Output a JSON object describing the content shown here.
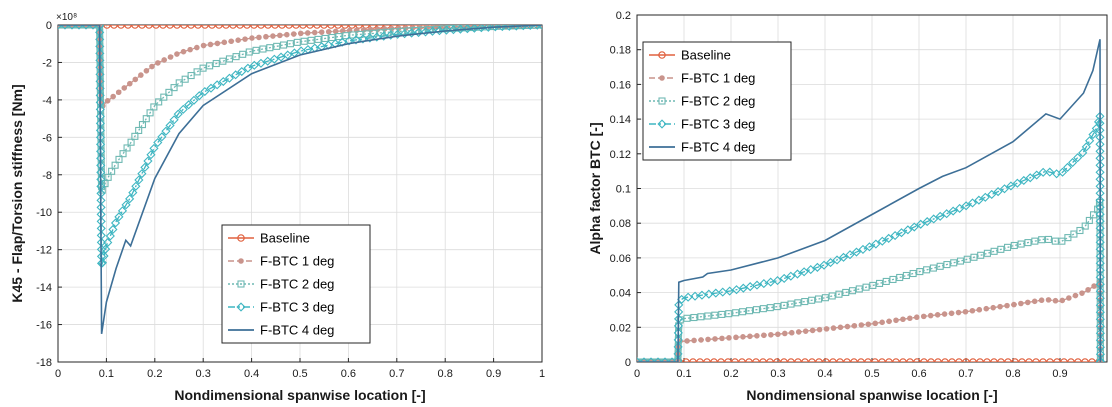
{
  "chart_data": [
    {
      "type": "line",
      "ylabel": "K45 - Flap/Torsion stiffness [Nm]",
      "xlabel": "Nondimensional spanwise location [-]",
      "exponent_label": "×10⁸",
      "xlim": [
        0,
        1
      ],
      "ylim": [
        -18,
        0
      ],
      "y_scale_factor": 100000000,
      "x_ticks": [
        "0",
        "0.1",
        "0.2",
        "0.3",
        "0.4",
        "0.5",
        "0.6",
        "0.7",
        "0.8",
        "0.9",
        "1"
      ],
      "y_ticks": [
        "0",
        "-2",
        "-4",
        "-6",
        "-8",
        "-10",
        "-12",
        "-14",
        "-16",
        "-18"
      ],
      "legend_position": "bottom-center",
      "series": [
        {
          "name": "Baseline",
          "color": "#e0603e",
          "marker": "circle",
          "dash": "solid",
          "x": [
            0,
            0.05,
            0.09,
            0.15,
            0.2,
            0.3,
            0.4,
            0.5,
            0.6,
            0.7,
            0.8,
            0.9,
            1.0
          ],
          "y": [
            0,
            0,
            0,
            0,
            0,
            0,
            0,
            0,
            0,
            0,
            0,
            0,
            0
          ]
        },
        {
          "name": "F-BTC 1 deg",
          "color": "#c9948c",
          "marker": "dot",
          "dash": "dashed",
          "x": [
            0,
            0.05,
            0.086,
            0.088,
            0.09,
            0.1,
            0.12,
            0.15,
            0.2,
            0.25,
            0.3,
            0.4,
            0.5,
            0.6,
            0.7,
            0.8,
            0.9,
            1.0
          ],
          "y": [
            0,
            0,
            0,
            -2.2,
            -4.4,
            -4.1,
            -3.7,
            -3.1,
            -2.1,
            -1.5,
            -1.1,
            -0.7,
            -0.45,
            -0.3,
            -0.18,
            -0.1,
            -0.05,
            0
          ]
        },
        {
          "name": "F-BTC 2 deg",
          "color": "#6fb9b3",
          "marker": "square",
          "dash": "dotted",
          "x": [
            0,
            0.05,
            0.086,
            0.088,
            0.09,
            0.1,
            0.12,
            0.15,
            0.2,
            0.25,
            0.3,
            0.4,
            0.5,
            0.6,
            0.7,
            0.8,
            0.9,
            1.0
          ],
          "y": [
            0,
            0,
            0,
            -4.5,
            -8.9,
            -8.3,
            -7.4,
            -6.3,
            -4.3,
            -3.1,
            -2.3,
            -1.4,
            -0.9,
            -0.55,
            -0.35,
            -0.2,
            -0.08,
            0
          ]
        },
        {
          "name": "F-BTC 3 deg",
          "color": "#3fb6c2",
          "marker": "diamond",
          "dash": "dashdot",
          "x": [
            0,
            0.05,
            0.086,
            0.088,
            0.09,
            0.1,
            0.12,
            0.15,
            0.2,
            0.25,
            0.3,
            0.4,
            0.5,
            0.6,
            0.7,
            0.8,
            0.9,
            1.0
          ],
          "y": [
            0,
            0,
            0,
            -6.5,
            -12.9,
            -11.8,
            -10.5,
            -9.2,
            -6.5,
            -4.7,
            -3.6,
            -2.2,
            -1.4,
            -0.85,
            -0.5,
            -0.28,
            -0.1,
            0
          ]
        },
        {
          "name": "F-BTC 4 deg",
          "color": "#3d6f97",
          "marker": "none",
          "dash": "solid",
          "x": [
            0,
            0.05,
            0.086,
            0.088,
            0.09,
            0.1,
            0.12,
            0.14,
            0.15,
            0.2,
            0.25,
            0.3,
            0.4,
            0.5,
            0.6,
            0.7,
            0.8,
            0.9,
            1.0
          ],
          "y": [
            0,
            0,
            0,
            -8.3,
            -16.5,
            -14.8,
            -13.0,
            -11.5,
            -11.8,
            -8.2,
            -5.8,
            -4.3,
            -2.6,
            -1.6,
            -1.0,
            -0.6,
            -0.32,
            -0.12,
            0
          ]
        }
      ]
    },
    {
      "type": "line",
      "ylabel": "Alpha factor BTC [-]",
      "xlabel": "Nondimensional spanwise location [-]",
      "xlim": [
        0,
        1
      ],
      "ylim": [
        0,
        0.2
      ],
      "x_ticks": [
        "0",
        "0.1",
        "0.2",
        "0.3",
        "0.4",
        "0.5",
        "0.6",
        "0.7",
        "0.8",
        "0.9"
      ],
      "y_ticks": [
        "0",
        "0.02",
        "0.04",
        "0.06",
        "0.08",
        "0.1",
        "0.12",
        "0.14",
        "0.16",
        "0.18",
        "0.2"
      ],
      "legend_position": "top-left",
      "series": [
        {
          "name": "Baseline",
          "color": "#e0603e",
          "marker": "circle",
          "dash": "solid",
          "x": [
            0,
            0.1,
            0.2,
            0.3,
            0.4,
            0.5,
            0.6,
            0.7,
            0.8,
            0.9,
            0.985
          ],
          "y": [
            0,
            0,
            0,
            0,
            0,
            0,
            0,
            0,
            0,
            0,
            0
          ]
        },
        {
          "name": "F-BTC 1 deg",
          "color": "#c9948c",
          "marker": "dot",
          "dash": "dashed",
          "x": [
            0,
            0.05,
            0.087,
            0.089,
            0.1,
            0.2,
            0.3,
            0.4,
            0.5,
            0.6,
            0.7,
            0.8,
            0.87,
            0.9,
            0.95,
            0.98,
            0.985,
            0.986
          ],
          "y": [
            0,
            0,
            0,
            0.012,
            0.012,
            0.014,
            0.016,
            0.019,
            0.022,
            0.026,
            0.029,
            0.033,
            0.036,
            0.035,
            0.04,
            0.045,
            0.047,
            0
          ]
        },
        {
          "name": "F-BTC 2 deg",
          "color": "#6fb9b3",
          "marker": "square",
          "dash": "dotted",
          "x": [
            0,
            0.05,
            0.087,
            0.089,
            0.1,
            0.2,
            0.3,
            0.4,
            0.5,
            0.6,
            0.7,
            0.8,
            0.87,
            0.9,
            0.95,
            0.98,
            0.985,
            0.986
          ],
          "y": [
            0,
            0,
            0,
            0.024,
            0.025,
            0.028,
            0.032,
            0.037,
            0.044,
            0.052,
            0.059,
            0.067,
            0.071,
            0.069,
            0.077,
            0.088,
            0.093,
            0
          ]
        },
        {
          "name": "F-BTC 3 deg",
          "color": "#3fb6c2",
          "marker": "diamond",
          "dash": "dashdot",
          "x": [
            0,
            0.05,
            0.087,
            0.089,
            0.1,
            0.2,
            0.3,
            0.4,
            0.5,
            0.6,
            0.7,
            0.8,
            0.87,
            0.9,
            0.95,
            0.98,
            0.985,
            0.986
          ],
          "y": [
            0,
            0,
            0,
            0.035,
            0.037,
            0.041,
            0.047,
            0.056,
            0.067,
            0.079,
            0.09,
            0.102,
            0.11,
            0.108,
            0.121,
            0.136,
            0.142,
            0
          ]
        },
        {
          "name": "F-BTC 4 deg",
          "color": "#3d6f97",
          "marker": "none",
          "dash": "solid",
          "x": [
            0,
            0.05,
            0.087,
            0.089,
            0.1,
            0.14,
            0.15,
            0.2,
            0.3,
            0.4,
            0.5,
            0.6,
            0.65,
            0.7,
            0.8,
            0.87,
            0.9,
            0.95,
            0.97,
            0.985,
            0.986
          ],
          "y": [
            0,
            0,
            0,
            0.046,
            0.047,
            0.049,
            0.051,
            0.053,
            0.06,
            0.07,
            0.085,
            0.1,
            0.107,
            0.112,
            0.127,
            0.143,
            0.14,
            0.155,
            0.168,
            0.186,
            0
          ]
        }
      ]
    }
  ]
}
